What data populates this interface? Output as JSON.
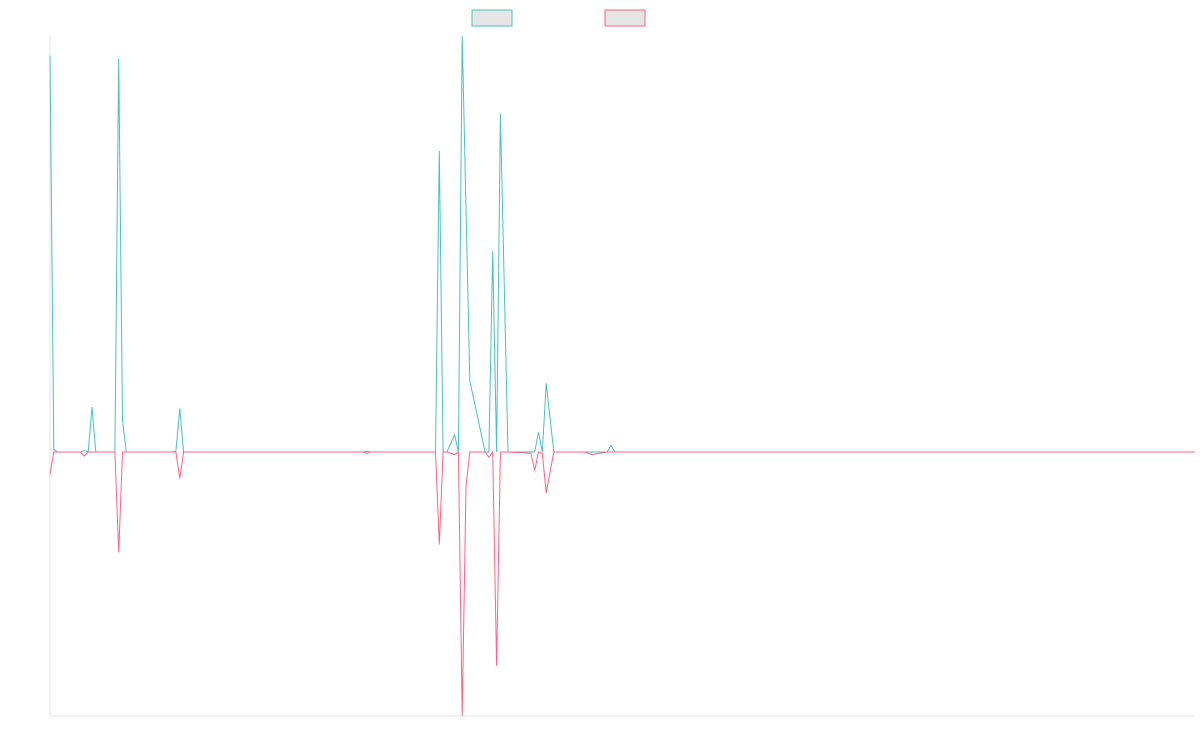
{
  "chart_data": {
    "type": "line",
    "title": "",
    "xlabel": "",
    "ylabel": "",
    "grid": false,
    "legend_position": "top-center",
    "xlim": [
      0,
      150
    ],
    "ylim": [
      -1000,
      1500
    ],
    "series": [
      {
        "color": "#4bc0c0",
        "fill": "#e6e6e6",
        "x": [
          0,
          0.5,
          1,
          4,
          4.5,
          5,
          5.5,
          6,
          8.5,
          9,
          9.5,
          10,
          16,
          16.5,
          17,
          17.5,
          18,
          41,
          41.5,
          42,
          50.5,
          51,
          51.5,
          52,
          53,
          53.5,
          54,
          53.5,
          54,
          55,
          57,
          57.5,
          58,
          58.5,
          59,
          60,
          63,
          63.5,
          64,
          64.5,
          65,
          66,
          70,
          71,
          73,
          73.5,
          74,
          74.5,
          75,
          75.5,
          150
        ],
        "y": [
          1500,
          10,
          0,
          0,
          5,
          0,
          170,
          0,
          0,
          1490,
          120,
          0,
          0,
          3,
          165,
          0,
          0,
          0,
          3,
          0,
          0,
          1140,
          0,
          0,
          65,
          0,
          1575,
          0,
          1575,
          270,
          0,
          0,
          760,
          0,
          1280,
          0,
          0,
          0,
          75,
          0,
          260,
          0,
          0,
          0,
          0,
          25,
          0,
          0,
          0,
          0,
          0
        ]
      },
      {
        "color": "#ff6384",
        "fill": "#e6e6e6",
        "x": [
          0,
          0.5,
          1,
          4,
          4.5,
          5,
          5.5,
          6,
          8.5,
          9,
          9.5,
          10,
          16,
          16.5,
          17,
          17.5,
          18,
          41,
          41.5,
          42,
          50.5,
          51,
          51.5,
          52,
          53,
          53.5,
          54,
          54.5,
          55,
          57,
          57.5,
          58,
          58.5,
          59,
          60,
          63,
          63.5,
          64,
          64.5,
          65,
          66,
          70,
          71,
          73,
          73.5,
          74,
          150
        ],
        "y": [
          -85,
          0,
          0,
          0,
          -15,
          0,
          0,
          0,
          0,
          -380,
          0,
          0,
          0,
          0,
          -100,
          0,
          0,
          0,
          -5,
          0,
          0,
          -350,
          0,
          0,
          -10,
          0,
          -1000,
          -130,
          0,
          0,
          -20,
          0,
          -810,
          0,
          0,
          -5,
          -70,
          0,
          -5,
          -155,
          0,
          0,
          -10,
          0,
          0,
          0,
          0
        ]
      }
    ]
  }
}
